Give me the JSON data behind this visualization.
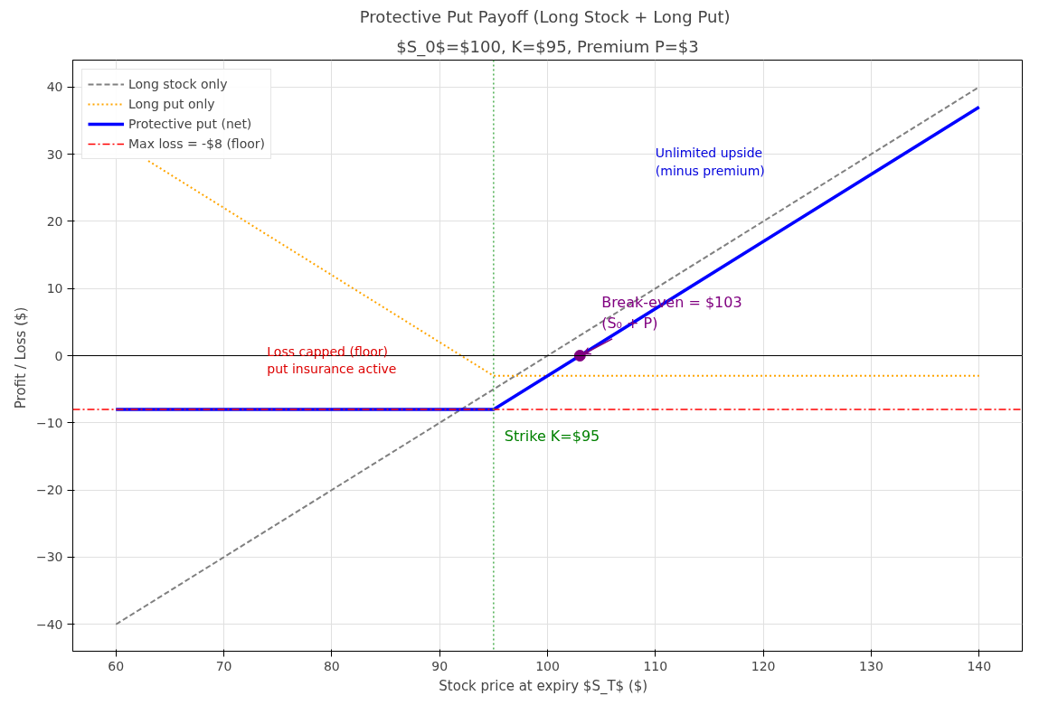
{
  "chart_data": {
    "type": "line",
    "title": "Protective Put Payoff  (Long Stock + Long Put)",
    "subtitle": "$S_0$=$100, K=$95, Premium P=$3",
    "xlabel": "Stock price at expiry  $S_T$  ($)",
    "ylabel": "Profit / Loss  ($)",
    "series": [
      {
        "name": "Long stock only",
        "color": "#808080",
        "x": [
          60,
          140
        ],
        "values": [
          -40,
          40
        ],
        "line_style": "dashed"
      },
      {
        "name": "Long put only",
        "color": "#ffa500",
        "x": [
          63,
          95,
          140
        ],
        "values": [
          29,
          -3,
          -3
        ],
        "line_style": "dotted"
      },
      {
        "name": "Protective put (net)",
        "color": "#0000ff",
        "x": [
          60,
          95,
          140
        ],
        "values": [
          -8,
          -8,
          37
        ],
        "line_style": "solid"
      },
      {
        "type": "scatter",
        "color": "#800080",
        "x": [
          103
        ],
        "values": [
          0
        ],
        "marker": "circle"
      }
    ],
    "ref_lines": [
      {
        "axis": "y",
        "value": -8,
        "label": "Max loss = -$8 (floor)",
        "color": "#ff0000",
        "line_style": "dashdot"
      },
      {
        "axis": "x",
        "value": 95,
        "label": "Strike K=$95",
        "color": "#4caf50",
        "line_style": "dotted"
      },
      {
        "axis": "y",
        "value": 0,
        "color": "#000000",
        "line_style": "solid"
      }
    ],
    "annotations": [
      {
        "text": "Break-even = $103\n(S₀ + P)",
        "x": 103,
        "y": 0
      },
      "Unlimited upside\n(minus premium)",
      "Loss capped (floor)\nput insurance active"
    ],
    "xlim": [
      56,
      144
    ],
    "ylim": [
      -44,
      44
    ],
    "xticks": [
      60,
      70,
      80,
      90,
      100,
      110,
      120,
      130,
      140
    ],
    "yticks": [
      {
        "value": -40,
        "label": "−40"
      },
      {
        "value": -30,
        "label": "−30"
      },
      {
        "value": -20,
        "label": "−20"
      },
      {
        "value": -10,
        "label": "−10"
      },
      0,
      10,
      20,
      30,
      40
    ],
    "grid": true,
    "legend": "top left"
  }
}
